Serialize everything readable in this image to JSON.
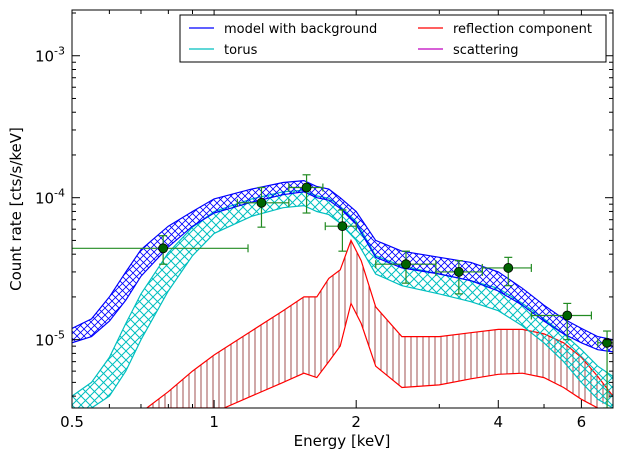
{
  "chart_data": {
    "type": "line",
    "xlabel": "Energy [keV]",
    "ylabel": "Count rate [cts/s/keV]",
    "xscale": "log",
    "yscale": "log",
    "xlim": [
      0.5,
      7.0
    ],
    "ylim": [
      3.3e-06,
      0.0021
    ],
    "x_ticks": [
      {
        "value": 0.5,
        "label": "0.5"
      },
      {
        "value": 1,
        "label": "1"
      },
      {
        "value": 2,
        "label": "2"
      },
      {
        "value": 4,
        "label": "4"
      },
      {
        "value": 6,
        "label": "6"
      }
    ],
    "y_ticks": [
      {
        "value": 1e-05,
        "base": "10",
        "exp": "-5"
      },
      {
        "value": 0.0001,
        "base": "10",
        "exp": "-4"
      },
      {
        "value": 0.001,
        "base": "10",
        "exp": "-3"
      }
    ],
    "legend": {
      "position": "top-right",
      "entries": [
        {
          "label": "model with background",
          "color": "#0000ff"
        },
        {
          "label": "reflection component",
          "color": "#ff0000"
        },
        {
          "label": "torus",
          "color": "#00bfbf"
        },
        {
          "label": "scattering",
          "color": "#bf00bf"
        }
      ]
    },
    "colors": {
      "model": "#0000ff",
      "torus": "#00bfbf",
      "reflection": "#ff0000",
      "reflection_hatch": "#a05050",
      "scattering": "#bf00bf",
      "data": "#228b22",
      "data_marker": "#006400"
    },
    "series": [
      {
        "key": "model",
        "upper": [
          [
            0.5,
            1.2e-05
          ],
          [
            0.55,
            1.4e-05
          ],
          [
            0.6,
            2e-05
          ],
          [
            0.65,
            3e-05
          ],
          [
            0.7,
            4.3e-05
          ],
          [
            0.8,
            6.3e-05
          ],
          [
            0.9,
            8e-05
          ],
          [
            1.0,
            9.8e-05
          ],
          [
            1.2,
            0.000115
          ],
          [
            1.4,
            0.000128
          ],
          [
            1.55,
            0.000132
          ],
          [
            1.65,
            0.00012
          ],
          [
            1.75,
            0.000115
          ],
          [
            1.85,
            0.0001
          ],
          [
            2.0,
            8e-05
          ],
          [
            2.2,
            5e-05
          ],
          [
            2.5,
            4.2e-05
          ],
          [
            3.0,
            3.8e-05
          ],
          [
            3.5,
            3.5e-05
          ],
          [
            4.0,
            3e-05
          ],
          [
            4.5,
            2.3e-05
          ],
          [
            5.0,
            1.75e-05
          ],
          [
            5.5,
            1.4e-05
          ],
          [
            6.0,
            1.2e-05
          ],
          [
            6.5,
            1.05e-05
          ],
          [
            7.0,
            1e-05
          ]
        ],
        "lower": [
          [
            0.5,
            9.5e-06
          ],
          [
            0.55,
            1.05e-05
          ],
          [
            0.6,
            1.35e-05
          ],
          [
            0.65,
            1.9e-05
          ],
          [
            0.7,
            2.8e-05
          ],
          [
            0.8,
            4.5e-05
          ],
          [
            0.9,
            6.3e-05
          ],
          [
            1.0,
            7.8e-05
          ],
          [
            1.2,
            9.3e-05
          ],
          [
            1.4,
            0.000105
          ],
          [
            1.55,
            0.00011
          ],
          [
            1.65,
            0.0001
          ],
          [
            1.75,
            9.6e-05
          ],
          [
            1.85,
            8.4e-05
          ],
          [
            2.0,
            6.5e-05
          ],
          [
            2.2,
            3.8e-05
          ],
          [
            2.5,
            3.2e-05
          ],
          [
            3.0,
            2.9e-05
          ],
          [
            3.5,
            2.6e-05
          ],
          [
            4.0,
            2.2e-05
          ],
          [
            4.5,
            1.75e-05
          ],
          [
            5.0,
            1.35e-05
          ],
          [
            5.5,
            1.1e-05
          ],
          [
            6.0,
            9.5e-06
          ],
          [
            6.5,
            8.5e-06
          ],
          [
            7.0,
            8.2e-06
          ]
        ]
      },
      {
        "key": "torus",
        "upper": [
          [
            0.5,
            4e-06
          ],
          [
            0.55,
            5e-06
          ],
          [
            0.6,
            7.5e-06
          ],
          [
            0.65,
            1.3e-05
          ],
          [
            0.7,
            2.1e-05
          ],
          [
            0.8,
            4.1e-05
          ],
          [
            0.9,
            6.2e-05
          ],
          [
            1.0,
            8e-05
          ],
          [
            1.2,
            9.8e-05
          ],
          [
            1.4,
            0.00011
          ],
          [
            1.55,
            0.000113
          ],
          [
            1.65,
            0.000103
          ],
          [
            1.75,
            9.9e-05
          ],
          [
            1.85,
            8.7e-05
          ],
          [
            2.0,
            6.8e-05
          ],
          [
            2.2,
            3.9e-05
          ],
          [
            2.5,
            3.3e-05
          ],
          [
            3.0,
            2.9e-05
          ],
          [
            3.5,
            2.6e-05
          ],
          [
            4.0,
            2.3e-05
          ],
          [
            4.5,
            1.8e-05
          ],
          [
            5.0,
            1.4e-05
          ],
          [
            5.5,
            1.1e-05
          ],
          [
            6.0,
            8.5e-06
          ],
          [
            6.5,
            6.5e-06
          ],
          [
            7.0,
            5.5e-06
          ]
        ],
        "lower": [
          [
            0.5,
            3.3e-06
          ],
          [
            0.55,
            3.3e-06
          ],
          [
            0.6,
            4e-06
          ],
          [
            0.65,
            6e-06
          ],
          [
            0.7,
            1e-05
          ],
          [
            0.8,
            2.2e-05
          ],
          [
            0.9,
            3.9e-05
          ],
          [
            1.0,
            5.6e-05
          ],
          [
            1.2,
            7.4e-05
          ],
          [
            1.4,
            8.5e-05
          ],
          [
            1.55,
            8.8e-05
          ],
          [
            1.65,
            8e-05
          ],
          [
            1.75,
            7.6e-05
          ],
          [
            1.85,
            6.6e-05
          ],
          [
            2.0,
            5e-05
          ],
          [
            2.2,
            2.9e-05
          ],
          [
            2.5,
            2.4e-05
          ],
          [
            3.0,
            2.1e-05
          ],
          [
            3.5,
            1.85e-05
          ],
          [
            4.0,
            1.6e-05
          ],
          [
            4.5,
            1.25e-05
          ],
          [
            5.0,
            9.5e-06
          ],
          [
            5.5,
            7e-06
          ],
          [
            6.0,
            5e-06
          ],
          [
            6.5,
            3.8e-06
          ],
          [
            7.0,
            3.3e-06
          ]
        ]
      },
      {
        "key": "reflection",
        "upper": [
          [
            0.72,
            3.3e-06
          ],
          [
            0.8,
            4.3e-06
          ],
          [
            0.9,
            6e-06
          ],
          [
            1.0,
            7.8e-06
          ],
          [
            1.2,
            1.15e-05
          ],
          [
            1.4,
            1.6e-05
          ],
          [
            1.55,
            2e-05
          ],
          [
            1.65,
            2e-05
          ],
          [
            1.75,
            2.7e-05
          ],
          [
            1.85,
            3.1e-05
          ],
          [
            1.95,
            5e-05
          ],
          [
            2.05,
            3.6e-05
          ],
          [
            2.2,
            1.7e-05
          ],
          [
            2.5,
            1.05e-05
          ],
          [
            3.0,
            1.05e-05
          ],
          [
            3.5,
            1.12e-05
          ],
          [
            4.0,
            1.18e-05
          ],
          [
            4.5,
            1.18e-05
          ],
          [
            5.0,
            1.1e-05
          ],
          [
            5.5,
            9.5e-06
          ],
          [
            6.0,
            7.5e-06
          ],
          [
            6.5,
            5.5e-06
          ],
          [
            7.0,
            4e-06
          ]
        ],
        "lower": [
          [
            0.72,
            3.3e-06
          ],
          [
            1.05,
            3.3e-06
          ],
          [
            1.2,
            4e-06
          ],
          [
            1.4,
            5e-06
          ],
          [
            1.55,
            5.8e-06
          ],
          [
            1.65,
            5.4e-06
          ],
          [
            1.75,
            7e-06
          ],
          [
            1.85,
            9e-06
          ],
          [
            1.95,
            1.8e-05
          ],
          [
            2.05,
            1.3e-05
          ],
          [
            2.2,
            6.5e-06
          ],
          [
            2.5,
            4.6e-06
          ],
          [
            3.0,
            4.8e-06
          ],
          [
            3.5,
            5.3e-06
          ],
          [
            4.0,
            5.7e-06
          ],
          [
            4.5,
            5.8e-06
          ],
          [
            5.0,
            5.4e-06
          ],
          [
            5.5,
            4.6e-06
          ],
          [
            6.0,
            3.8e-06
          ],
          [
            6.5,
            3.3e-06
          ]
        ]
      }
    ],
    "data_points": [
      {
        "x": 0.78,
        "xerr": [
          0.5,
          1.18
        ],
        "y": 4.4e-05,
        "yerr": [
          3.4e-05,
          5.4e-05
        ]
      },
      {
        "x": 1.26,
        "xerr": [
          1.12,
          1.44
        ],
        "y": 9.2e-05,
        "yerr": [
          6.2e-05,
          0.000118
        ]
      },
      {
        "x": 1.57,
        "xerr": [
          1.44,
          1.7
        ],
        "y": 0.000118,
        "yerr": [
          7.8e-05,
          0.000145
        ]
      },
      {
        "x": 1.87,
        "xerr": [
          1.72,
          2.0
        ],
        "y": 6.3e-05,
        "yerr": [
          4.2e-05,
          8.2e-05
        ]
      },
      {
        "x": 2.55,
        "xerr": [
          2.2,
          2.95
        ],
        "y": 3.4e-05,
        "yerr": [
          2.5e-05,
          4.2e-05
        ]
      },
      {
        "x": 3.3,
        "xerr": [
          2.95,
          3.7
        ],
        "y": 3e-05,
        "yerr": [
          2.1e-05,
          3.6e-05
        ]
      },
      {
        "x": 4.2,
        "xerr": [
          3.7,
          4.7
        ],
        "y": 3.2e-05,
        "yerr": [
          2.4e-05,
          3.8e-05
        ]
      },
      {
        "x": 5.6,
        "xerr": [
          4.7,
          6.3
        ],
        "y": 1.48e-05,
        "yerr": [
          1e-05,
          1.8e-05
        ]
      },
      {
        "x": 6.8,
        "xerr": [
          6.5,
          7.0
        ],
        "y": 9.5e-06,
        "yerr": [
          3.3e-06,
          1.15e-05
        ]
      }
    ]
  }
}
